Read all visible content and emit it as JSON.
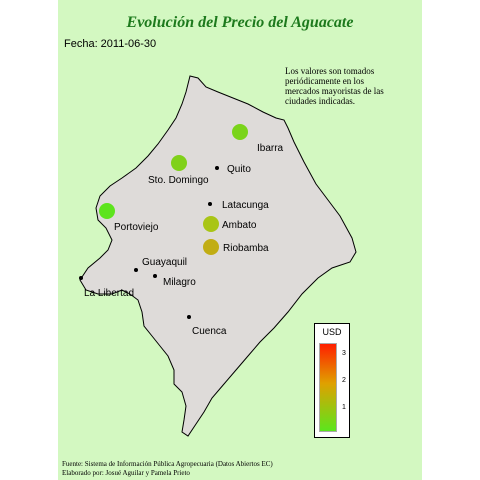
{
  "title": "Evolución del Precio del Aguacate",
  "date_label": "Fecha: 2011-06-30",
  "note": "Los valores son tomados periódicamente en los mercados mayoristas de las ciudades indicadas.",
  "footer": {
    "line1": "Fuente: Sistema de Información Pública Agropecuaria (Datos Abiertos EC)",
    "line2": "Elaborado por: Josué Aguilar y Pamela Prieto"
  },
  "colors": {
    "panel_background": "#d3f8c1",
    "map_fill": "#dedbd9",
    "title": "#1d7a1d",
    "scale_low": "#5be61d",
    "scale_high": "#ff1f00"
  },
  "legend": {
    "title": "USD",
    "ticks": [
      "3",
      "2",
      "1"
    ]
  },
  "cities": [
    {
      "name": "Ibarra",
      "price_level": "low-mid",
      "color": "#7ad41a"
    },
    {
      "name": "Quito",
      "color": null
    },
    {
      "name": "Sto. Domingo",
      "price_level": "low-mid",
      "color": "#80d11a"
    },
    {
      "name": "Latacunga",
      "color": null
    },
    {
      "name": "Ambato",
      "price_level": "mid",
      "color": "#a9c516"
    },
    {
      "name": "Portoviejo",
      "price_level": "low",
      "color": "#5de41d"
    },
    {
      "name": "Riobamba",
      "price_level": "mid-high",
      "color": "#c1ad14"
    },
    {
      "name": "Guayaquil",
      "color": null
    },
    {
      "name": "Milagro",
      "color": null
    },
    {
      "name": "La Libertad",
      "color": null
    },
    {
      "name": "Cuenca",
      "color": null
    }
  ]
}
